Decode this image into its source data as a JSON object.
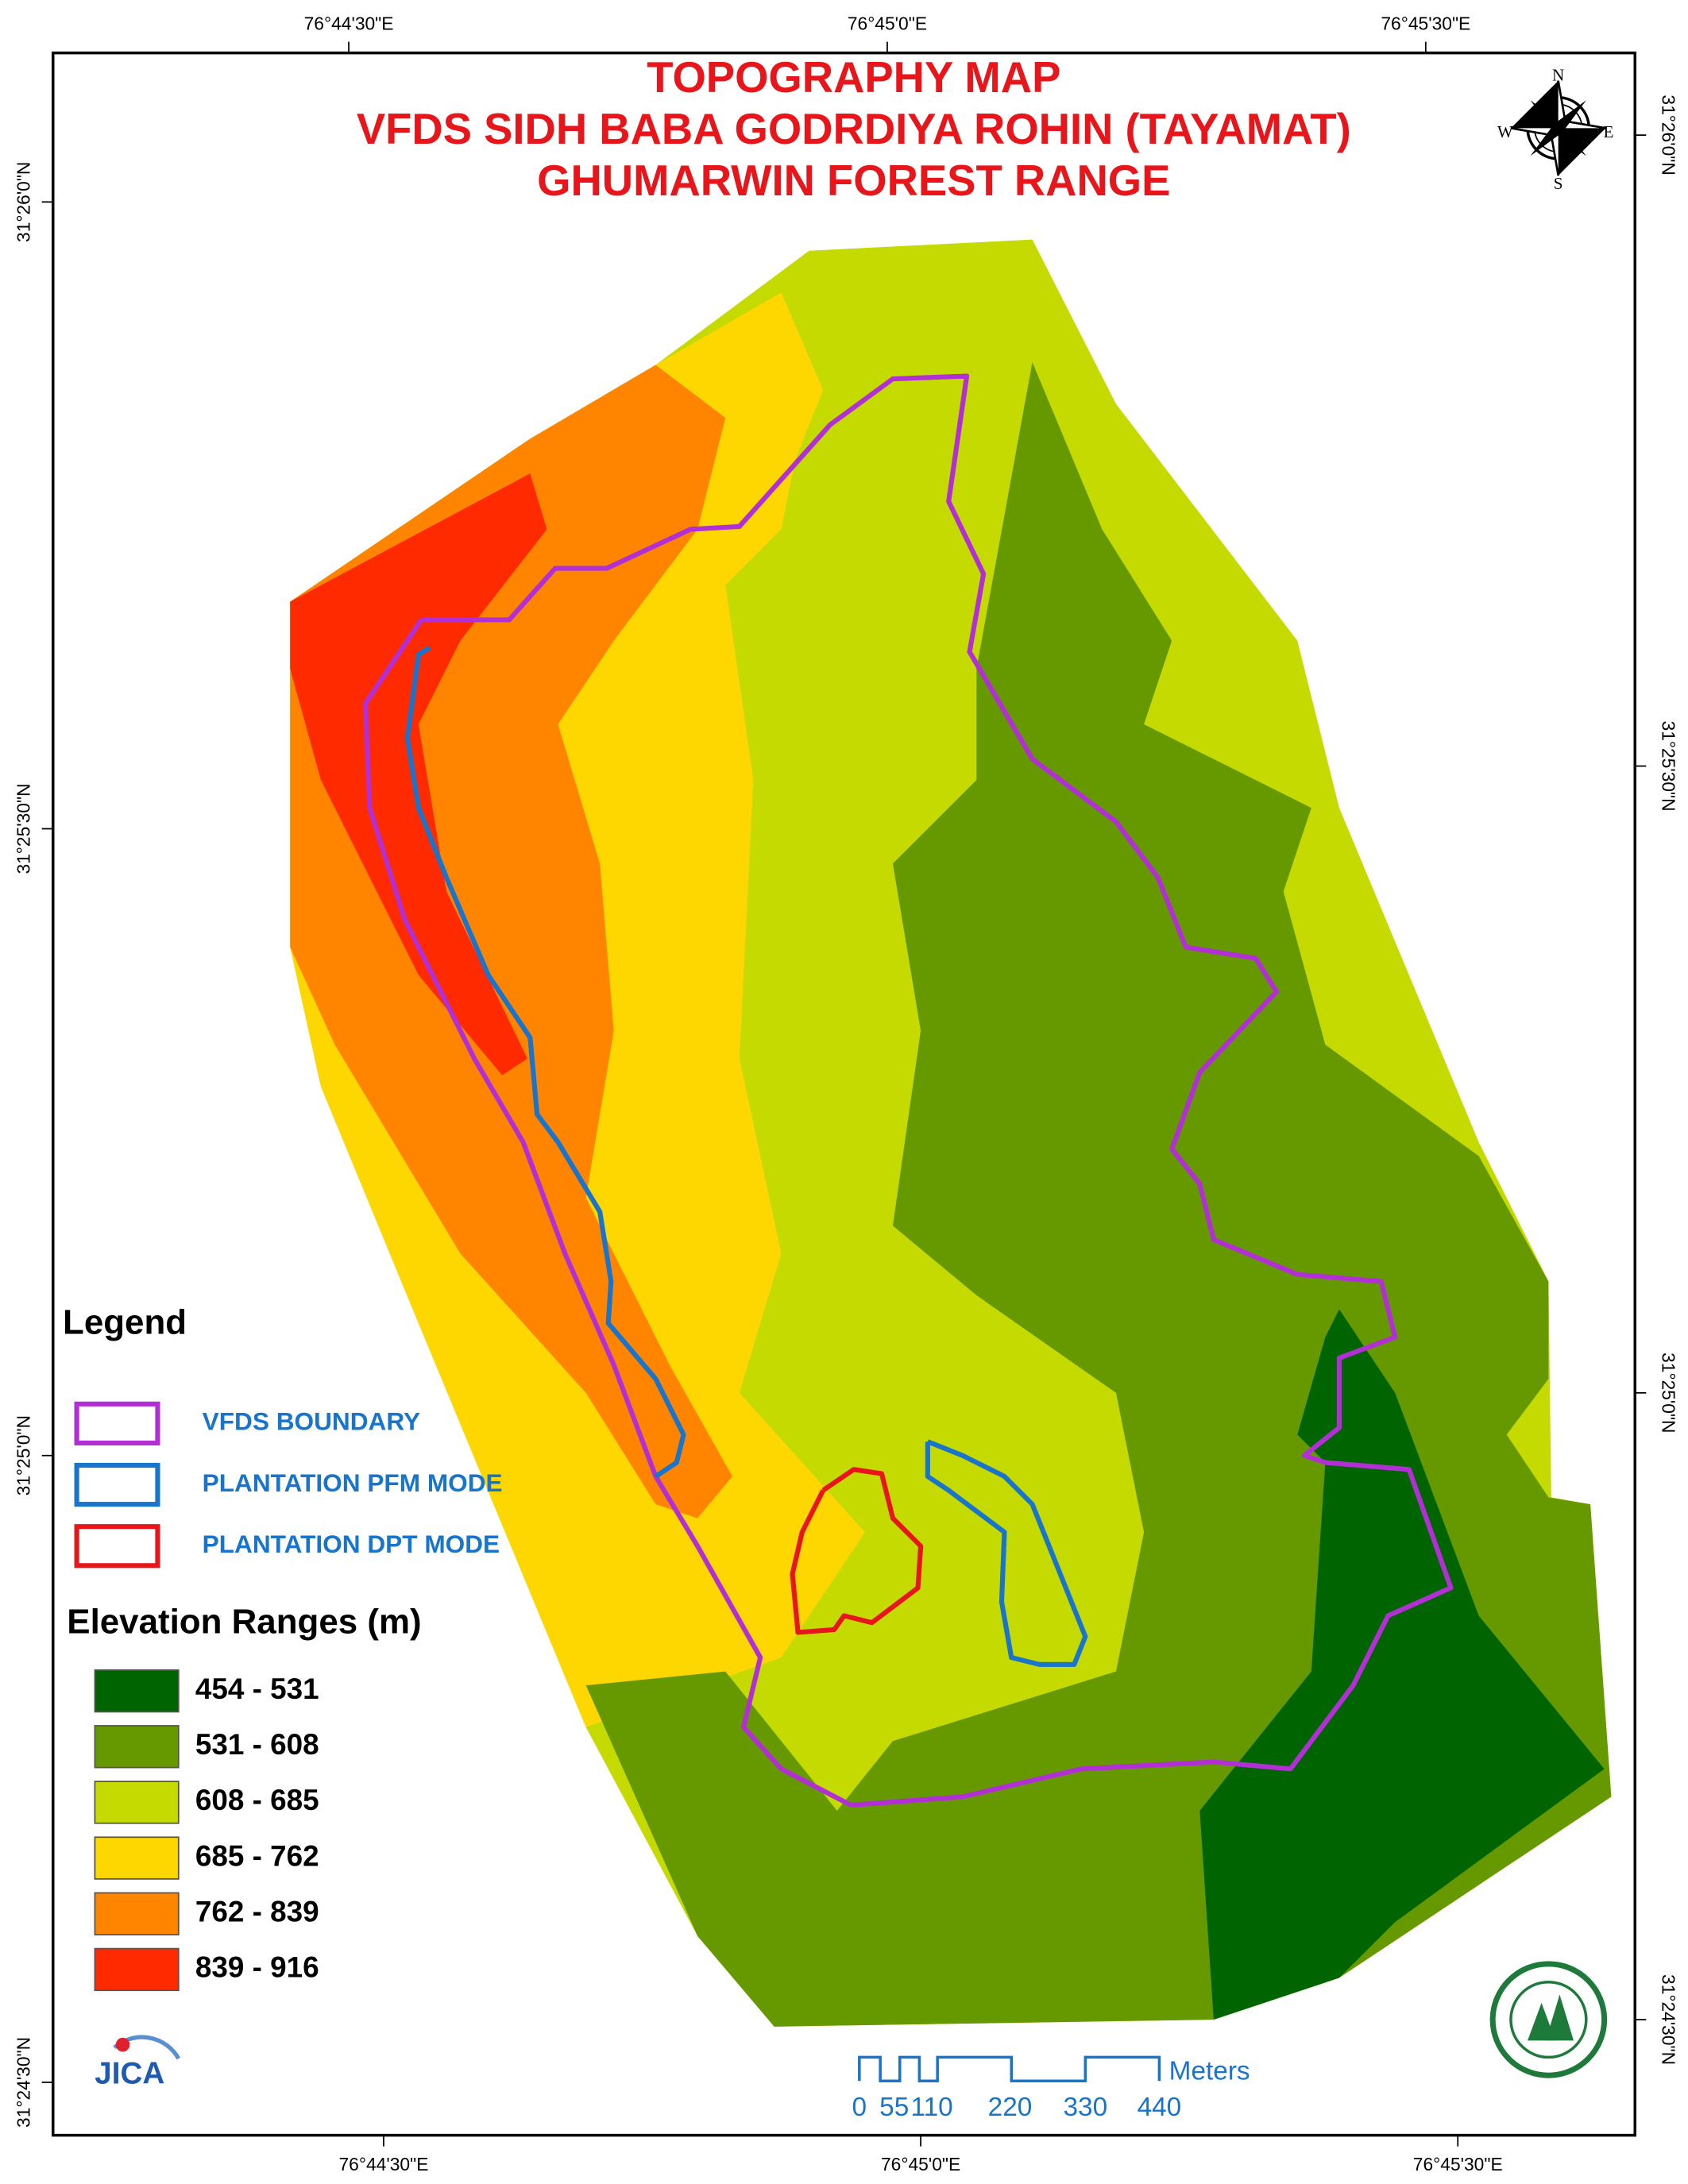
{
  "title": [
    "TOPOGRAPHY  MAP",
    "VFDS SIDH BABA GODRDIYA ROHIN (TAYAMAT)",
    "GHUMARWIN FOREST RANGE"
  ],
  "graticule": {
    "top": [
      "76°44'30\"E",
      "76°45'0\"E",
      "76°45'30\"E"
    ],
    "bottom": [
      "76°44'30\"E",
      "76°45'0\"E",
      "76°45'30\"E"
    ],
    "left": [
      "31°26'0\"N",
      "31°25'30\"N",
      "31°25'0\"N",
      "31°24'30\"N"
    ],
    "right": [
      "31°26'0\"N",
      "31°25'30\"N",
      "31°25'0\"N",
      "31°24'30\"N"
    ]
  },
  "compass": [
    "N",
    "E",
    "S",
    "W"
  ],
  "legend": {
    "title": "Legend",
    "items": [
      {
        "label": "VFDS BOUNDARY",
        "color": "#b22fd6"
      },
      {
        "label": "PLANTATION PFM MODE",
        "color": "#1874cd"
      },
      {
        "label": "PLANTATION DPT MODE",
        "color": "#e8161b"
      }
    ]
  },
  "elevation": {
    "title": "Elevation Ranges (m)",
    "classes": [
      {
        "label": "454 - 531",
        "color": "#006400"
      },
      {
        "label": "531 - 608",
        "color": "#669900"
      },
      {
        "label": "608 - 685",
        "color": "#c5da00"
      },
      {
        "label": "685 - 762",
        "color": "#ffd700"
      },
      {
        "label": "762 - 839",
        "color": "#ff8500"
      },
      {
        "label": "839 - 916",
        "color": "#ff2a00"
      }
    ]
  },
  "scale_bar": {
    "ticks": [
      "0",
      "55",
      "110",
      "220",
      "330",
      "440"
    ],
    "unit": "Meters"
  },
  "logo": "JICA"
}
